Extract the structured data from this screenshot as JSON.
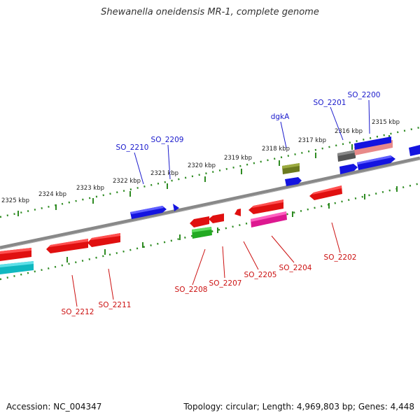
{
  "title": "Shewanella oneidensis MR-1, complete genome",
  "footer": {
    "accession": "Accession: NC_004347",
    "summary": "Topology: circular; Length: 4,969,803 bp; Genes: 4,448"
  },
  "colors": {
    "backbone": "#888888",
    "ruler": "#2e8b22",
    "forward_label": "#1a1acc",
    "reverse_label": "#cc1111"
  },
  "ticks": [
    {
      "label": "2315 kbp"
    },
    {
      "label": "2316 kbp"
    },
    {
      "label": "2317 kbp"
    },
    {
      "label": "2318 kbp"
    },
    {
      "label": "2319 kbp"
    },
    {
      "label": "2320 kbp"
    },
    {
      "label": "2321 kbp"
    },
    {
      "label": "2322 kbp"
    },
    {
      "label": "2323 kbp"
    },
    {
      "label": "2324 kbp"
    },
    {
      "label": "2325 kbp"
    }
  ],
  "forward_labels": [
    {
      "text": "SO_2200"
    },
    {
      "text": "SO_2201"
    },
    {
      "text": "dgkA"
    },
    {
      "text": "SO_2209"
    },
    {
      "text": "SO_2210"
    }
  ],
  "reverse_labels": [
    {
      "text": "SO_2202"
    },
    {
      "text": "SO_2204"
    },
    {
      "text": "SO_2205"
    },
    {
      "text": "SO_2207"
    },
    {
      "text": "SO_2208"
    },
    {
      "text": "SO_2211"
    },
    {
      "text": "SO_2212"
    }
  ]
}
